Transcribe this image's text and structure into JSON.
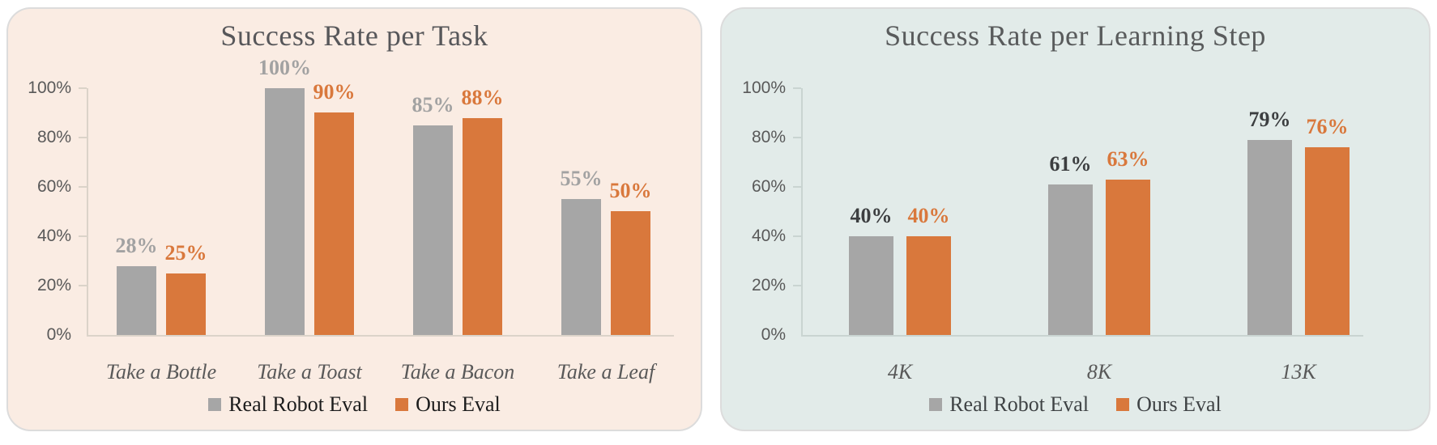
{
  "page": {
    "background": "#FFFFFF"
  },
  "charts": [
    {
      "chart_data": {
        "type": "bar",
        "title": "Success Rate per Task",
        "categories": [
          "Take a Bottle",
          "Take a Toast",
          "Take a Bacon",
          "Take a Leaf"
        ],
        "series": [
          {
            "name": "Real Robot Eval",
            "values": [
              28,
              100,
              85,
              55
            ]
          },
          {
            "name": "Ours Eval",
            "values": [
              25,
              90,
              88,
              50
            ]
          }
        ],
        "value_labels": [
          [
            "28%",
            "100%",
            "85%",
            "55%"
          ],
          [
            "25%",
            "90%",
            "88%",
            "50%"
          ]
        ],
        "xlabel": "",
        "ylabel": "",
        "ylim": [
          0,
          100
        ],
        "yticks": [
          0,
          20,
          40,
          60,
          80,
          100
        ],
        "ytick_labels": [
          "0%",
          "20%",
          "40%",
          "60%",
          "80%",
          "100%"
        ],
        "grid": false,
        "legend_position": "bottom"
      },
      "colors": {
        "background": "#FAECE3",
        "border": "#DCDCDC",
        "series": [
          "#A6A6A6",
          "#D9783C"
        ],
        "value_labels": [
          "#A2A2A2",
          "#D9783C"
        ],
        "title": "#57575A",
        "axis_text": "#595959",
        "category_text": "#595959",
        "axis_line": "#DBD3C9",
        "legend_text": "#1C1C1C"
      }
    },
    {
      "chart_data": {
        "type": "bar",
        "title": "Success Rate per Learning Step",
        "categories": [
          "4K",
          "8K",
          "13K"
        ],
        "series": [
          {
            "name": "Real Robot Eval",
            "values": [
              40,
              61,
              79
            ]
          },
          {
            "name": "Ours Eval",
            "values": [
              40,
              63,
              76
            ]
          }
        ],
        "value_labels": [
          [
            "40%",
            "61%",
            "79%"
          ],
          [
            "40%",
            "63%",
            "76%"
          ]
        ],
        "xlabel": "",
        "ylabel": "",
        "ylim": [
          0,
          100
        ],
        "yticks": [
          0,
          20,
          40,
          60,
          80,
          100
        ],
        "ytick_labels": [
          "0%",
          "20%",
          "40%",
          "60%",
          "80%",
          "100%"
        ],
        "grid": false,
        "legend_position": "bottom"
      },
      "colors": {
        "background": "#E2EBE9",
        "border": "#DCDCDC",
        "series": [
          "#A6A6A6",
          "#D9783C"
        ],
        "value_labels": [
          "#3C3E40",
          "#D9783C"
        ],
        "title": "#595B5C",
        "axis_text": "#595959",
        "category_text": "#595959",
        "axis_line": "#C9D4D1",
        "legend_text": "#3F4345"
      }
    }
  ]
}
